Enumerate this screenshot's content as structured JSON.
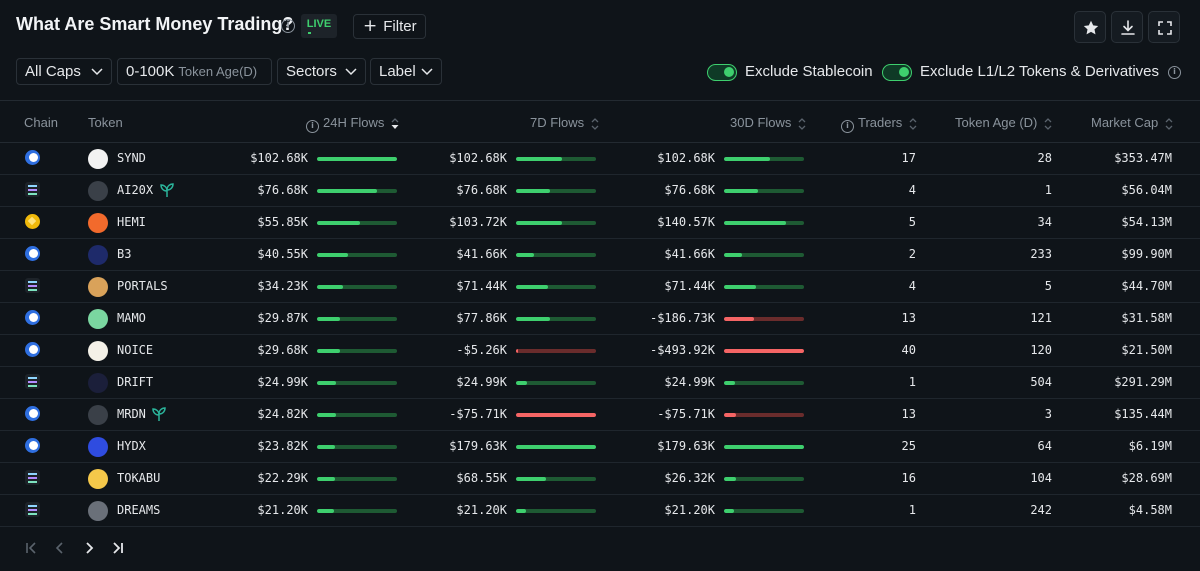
{
  "header": {
    "title": "What Are Smart Money Trading?",
    "live_label": "LIVE",
    "filter_label": "Filter"
  },
  "controls": {
    "caps_label": "All Caps",
    "token_age_value": "0-100K",
    "token_age_label": "Token Age(D)",
    "sectors_label": "Sectors",
    "label_label": "Label",
    "exclude_stablecoin": {
      "label": "Exclude Stablecoin",
      "on": true
    },
    "exclude_l1l2": {
      "label": "Exclude L1/L2 Tokens & Derivatives",
      "on": true
    }
  },
  "columns": {
    "chain": "Chain",
    "token": "Token",
    "flows_24h": "24H Flows",
    "flows_7d": "7D Flows",
    "flows_30d": "30D Flows",
    "traders": "Traders",
    "token_age": "Token Age (D)",
    "market_cap": "Market Cap"
  },
  "colors": {
    "positive": "#3ecf6e",
    "negative": "#f56565",
    "background": "#0f1419"
  },
  "rows": [
    {
      "chain": "base",
      "token": "SYND",
      "icon": "synd-icon",
      "f24": "$102.68K",
      "b24": 1.0,
      "f7": "$102.68K",
      "b7": 0.57,
      "f30": "$102.68K",
      "b30": 0.57,
      "traders": "17",
      "age": "28",
      "mcap": "$353.47M"
    },
    {
      "chain": "solana",
      "token": "AI20X",
      "icon": "ai20x-icon",
      "leaf": true,
      "f24": "$76.68K",
      "b24": 0.75,
      "f7": "$76.68K",
      "b7": 0.42,
      "f30": "$76.68K",
      "b30": 0.42,
      "traders": "4",
      "age": "1",
      "mcap": "$56.04M"
    },
    {
      "chain": "bnb",
      "token": "HEMI",
      "icon": "hemi-icon",
      "f24": "$55.85K",
      "b24": 0.54,
      "f7": "$103.72K",
      "b7": 0.58,
      "f30": "$140.57K",
      "b30": 0.78,
      "traders": "5",
      "age": "34",
      "mcap": "$54.13M"
    },
    {
      "chain": "base",
      "token": "B3",
      "icon": "b3-icon",
      "f24": "$40.55K",
      "b24": 0.39,
      "f7": "$41.66K",
      "b7": 0.23,
      "f30": "$41.66K",
      "b30": 0.23,
      "traders": "2",
      "age": "233",
      "mcap": "$99.90M"
    },
    {
      "chain": "solana",
      "token": "PORTALS",
      "icon": "portals-icon",
      "f24": "$34.23K",
      "b24": 0.33,
      "f7": "$71.44K",
      "b7": 0.4,
      "f30": "$71.44K",
      "b30": 0.4,
      "traders": "4",
      "age": "5",
      "mcap": "$44.70M"
    },
    {
      "chain": "base",
      "token": "MAMO",
      "icon": "mamo-icon",
      "f24": "$29.87K",
      "b24": 0.29,
      "f7": "$77.86K",
      "b7": 0.43,
      "f30": "-$186.73K",
      "b30": -0.38,
      "traders": "13",
      "age": "121",
      "mcap": "$31.58M"
    },
    {
      "chain": "base",
      "token": "NOICE",
      "icon": "noice-icon",
      "f24": "$29.68K",
      "b24": 0.29,
      "f7": "-$5.26K",
      "b7": -0.03,
      "f30": "-$493.92K",
      "b30": -1.0,
      "traders": "40",
      "age": "120",
      "mcap": "$21.50M"
    },
    {
      "chain": "solana",
      "token": "DRIFT",
      "icon": "drift-icon",
      "f24": "$24.99K",
      "b24": 0.24,
      "f7": "$24.99K",
      "b7": 0.14,
      "f30": "$24.99K",
      "b30": 0.14,
      "traders": "1",
      "age": "504",
      "mcap": "$291.29M"
    },
    {
      "chain": "base",
      "token": "MRDN",
      "icon": "mrdn-icon",
      "leaf": true,
      "f24": "$24.82K",
      "b24": 0.24,
      "f7": "-$75.71K",
      "b7": -1.0,
      "f30": "-$75.71K",
      "b30": -0.15,
      "traders": "13",
      "age": "3",
      "mcap": "$135.44M"
    },
    {
      "chain": "base",
      "token": "HYDX",
      "icon": "hydx-icon",
      "f24": "$23.82K",
      "b24": 0.23,
      "f7": "$179.63K",
      "b7": 1.0,
      "f30": "$179.63K",
      "b30": 1.0,
      "traders": "25",
      "age": "64",
      "mcap": "$6.19M"
    },
    {
      "chain": "solana",
      "token": "TOKABU",
      "icon": "tokabu-icon",
      "f24": "$22.29K",
      "b24": 0.22,
      "f7": "$68.55K",
      "b7": 0.38,
      "f30": "$26.32K",
      "b30": 0.15,
      "traders": "16",
      "age": "104",
      "mcap": "$28.69M"
    },
    {
      "chain": "solana",
      "token": "DREAMS",
      "icon": "dreams-icon",
      "f24": "$21.20K",
      "b24": 0.21,
      "f7": "$21.20K",
      "b7": 0.12,
      "f30": "$21.20K",
      "b30": 0.12,
      "traders": "1",
      "age": "242",
      "mcap": "$4.58M"
    }
  ]
}
